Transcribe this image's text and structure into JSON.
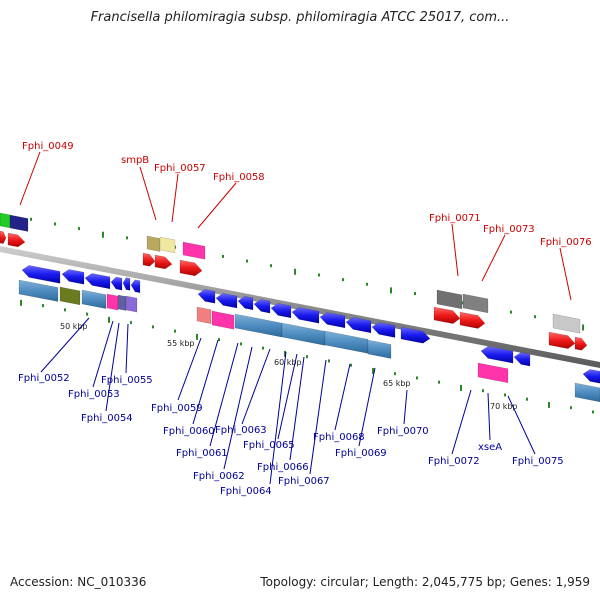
{
  "title": "Francisella philomiragia subsp. philomiragia ATCC 25017, com...",
  "footer": {
    "accession": "Accession: NC_010336",
    "summary": "Topology: circular; Length: 2,045,775 bp; Genes: 1,959"
  },
  "colors": {
    "forward_label": "#cc0000",
    "reverse_label": "#000099",
    "backbone": "#888888",
    "tick": "#2a8a2a"
  },
  "scale_labels": [
    "50 kbp",
    "55 kbp",
    "60 kbp",
    "65 kbp",
    "70 kbp"
  ],
  "forward_genes": [
    "Fphi_0049",
    "smpB",
    "Fphi_0057",
    "Fphi_0058",
    "Fphi_0071",
    "Fphi_0073",
    "Fphi_0076"
  ],
  "reverse_genes": [
    "Fphi_0052",
    "Fphi_0053",
    "Fphi_0054",
    "Fphi_0055",
    "Fphi_0059",
    "Fphi_0060",
    "Fphi_0061",
    "Fphi_0062",
    "Fphi_0063",
    "Fphi_0064",
    "Fphi_0065",
    "Fphi_0066",
    "Fphi_0067",
    "Fphi_0068",
    "Fphi_0069",
    "Fphi_0070",
    "Fphi_0072",
    "xseA",
    "Fphi_0075"
  ]
}
